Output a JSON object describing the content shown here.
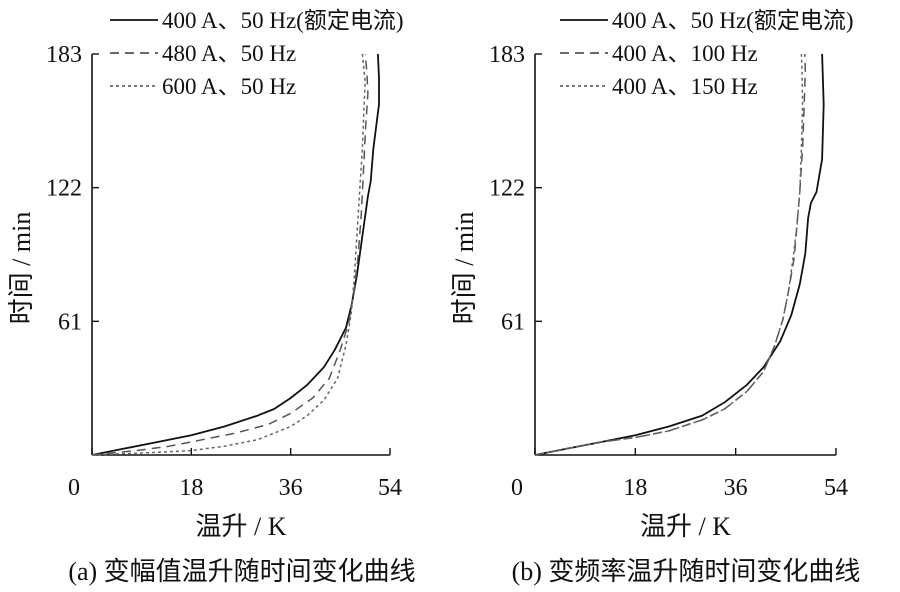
{
  "chart_data": [
    {
      "id": "a",
      "type": "line",
      "caption": "(a)  变幅值温升随时间变化曲线",
      "xlabel": "温升 / K",
      "ylabel": "时间 / min",
      "xlim": [
        0,
        54
      ],
      "ylim": [
        0,
        183
      ],
      "xticks": [
        0,
        18,
        36,
        54
      ],
      "yticks": [
        61,
        122,
        183
      ],
      "grid": false,
      "legend": "top",
      "series": [
        {
          "name": "400 A、50 Hz(额定电流)",
          "style": "solid",
          "color": "#111111",
          "x": [
            0,
            6,
            12,
            18,
            24,
            30,
            33,
            36,
            39,
            42,
            44,
            46,
            47,
            48,
            49,
            50,
            50.5,
            51,
            51.5,
            52,
            52,
            51.8
          ],
          "y": [
            0,
            3,
            6,
            9,
            13,
            18,
            21,
            26,
            32,
            40,
            48,
            58,
            68,
            82,
            100,
            118,
            125,
            140,
            150,
            160,
            172,
            183
          ]
        },
        {
          "name": "480 A、50 Hz",
          "style": "dashed",
          "color": "#555555",
          "x": [
            0,
            8,
            14,
            20,
            26,
            32,
            36,
            40,
            43,
            45,
            46.5,
            47.5,
            48.2,
            48.8,
            49.2,
            49.6,
            50,
            49.8,
            49.5
          ],
          "y": [
            0,
            2,
            4,
            7,
            10,
            14,
            19,
            26,
            35,
            48,
            60,
            75,
            90,
            110,
            130,
            150,
            165,
            175,
            183
          ]
        },
        {
          "name": "600 A、50 Hz",
          "style": "dotted",
          "color": "#666666",
          "x": [
            0,
            10,
            18,
            24,
            30,
            36,
            39,
            42,
            44.5,
            46,
            47,
            47.5,
            48,
            48.5,
            49,
            49.3,
            49.5,
            49.2,
            49
          ],
          "y": [
            0,
            1,
            2,
            4,
            7,
            13,
            18,
            25,
            35,
            50,
            65,
            80,
            100,
            120,
            140,
            160,
            170,
            178,
            183
          ]
        }
      ]
    },
    {
      "id": "b",
      "type": "line",
      "caption": "(b)  变频率温升随时间变化曲线",
      "xlabel": "温升 / K",
      "ylabel": "时间 / min",
      "xlim": [
        0,
        54
      ],
      "ylim": [
        0,
        183
      ],
      "xticks": [
        0,
        18,
        36,
        54
      ],
      "yticks": [
        61,
        122,
        183
      ],
      "grid": false,
      "legend": "top",
      "series": [
        {
          "name": "400 A、50 Hz(额定电流)",
          "style": "solid",
          "color": "#111111",
          "x": [
            0,
            6,
            12,
            18,
            24,
            30,
            34,
            38,
            41,
            44,
            46,
            47.5,
            48.5,
            49,
            49.5,
            50.5,
            51.5,
            51.8,
            51.5
          ],
          "y": [
            0,
            3,
            6,
            9,
            13,
            18,
            24,
            32,
            40,
            52,
            64,
            78,
            92,
            108,
            115,
            120,
            135,
            160,
            183
          ]
        },
        {
          "name": "400 A、100 Hz",
          "style": "dashed",
          "color": "#555555",
          "x": [
            0,
            6,
            12,
            18,
            24,
            30,
            34,
            38,
            41,
            43,
            44.5,
            45.5,
            46.5,
            47,
            47.5,
            48,
            48.3,
            48.5,
            48.4
          ],
          "y": [
            0,
            3,
            6,
            8,
            11,
            16,
            21,
            29,
            38,
            50,
            62,
            75,
            90,
            105,
            120,
            140,
            160,
            175,
            183
          ]
        },
        {
          "name": "400 A、150 Hz",
          "style": "dotted",
          "color": "#666666",
          "x": [
            0,
            6,
            12,
            18,
            24,
            30,
            34,
            38,
            41,
            43,
            44.5,
            45.5,
            46.3,
            47,
            47.5,
            47.8,
            48,
            47.9,
            47.8
          ],
          "y": [
            0,
            3,
            6,
            8,
            11,
            16,
            21,
            29,
            38,
            50,
            62,
            75,
            90,
            105,
            120,
            140,
            160,
            175,
            183
          ]
        }
      ]
    }
  ]
}
